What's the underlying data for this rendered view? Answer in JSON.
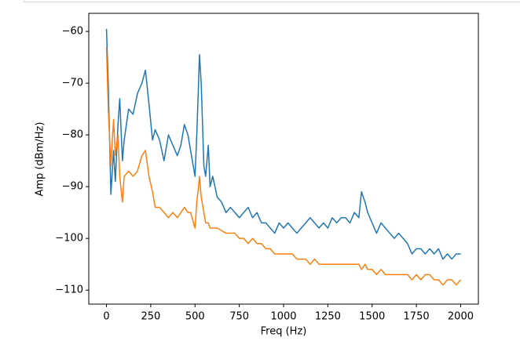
{
  "chart_data": {
    "type": "line",
    "xlabel": "Freq (Hz)",
    "ylabel": "Amp (dBm/Hz)",
    "x": [
      0,
      10,
      25,
      40,
      50,
      65,
      75,
      90,
      100,
      125,
      150,
      175,
      200,
      220,
      240,
      260,
      275,
      300,
      325,
      350,
      375,
      400,
      420,
      440,
      460,
      475,
      500,
      510,
      520,
      525,
      535,
      550,
      560,
      575,
      585,
      600,
      625,
      650,
      675,
      700,
      725,
      750,
      775,
      800,
      825,
      850,
      875,
      900,
      925,
      950,
      975,
      1000,
      1025,
      1050,
      1075,
      1100,
      1125,
      1150,
      1175,
      1200,
      1225,
      1250,
      1275,
      1300,
      1325,
      1350,
      1375,
      1400,
      1425,
      1440,
      1460,
      1475,
      1500,
      1525,
      1550,
      1575,
      1600,
      1625,
      1650,
      1675,
      1700,
      1725,
      1750,
      1775,
      1800,
      1825,
      1850,
      1875,
      1900,
      1925,
      1950,
      1975,
      2000
    ],
    "series": [
      {
        "color": "#1f77b4",
        "values": [
          -59.5,
          -70,
          -91.5,
          -83,
          -89,
          -78,
          -73,
          -85,
          -81,
          -75,
          -76,
          -72,
          -70,
          -67.5,
          -74,
          -81,
          -79,
          -81,
          -85,
          -80,
          -82,
          -84,
          -82,
          -78,
          -80,
          -83,
          -88,
          -80,
          -70,
          -64.5,
          -70,
          -86,
          -88,
          -82,
          -90,
          -88,
          -92,
          -93,
          -95,
          -94,
          -95,
          -96,
          -95,
          -94,
          -96,
          -95,
          -97,
          -97,
          -98,
          -99,
          -97,
          -98,
          -97,
          -98,
          -99,
          -98,
          -97,
          -96,
          -97,
          -98,
          -97,
          -98,
          -96,
          -97,
          -96,
          -96,
          -97,
          -95,
          -96,
          -91,
          -93,
          -95,
          -97,
          -99,
          -97,
          -98,
          -99,
          -100,
          -99,
          -100,
          -101,
          -103,
          -102,
          -102,
          -103,
          -102,
          -103,
          -102,
          -104,
          -103,
          -104,
          -103,
          -103
        ]
      },
      {
        "color": "#ff7f0e",
        "values": [
          -63,
          -75,
          -86,
          -77,
          -84,
          -80,
          -88,
          -93,
          -88,
          -87,
          -88,
          -87,
          -84,
          -83,
          -88,
          -91,
          -94,
          -94,
          -95,
          -96,
          -95,
          -96,
          -95,
          -94,
          -95,
          -95,
          -98,
          -93,
          -90,
          -88,
          -92,
          -95,
          -97,
          -97,
          -98,
          -98,
          -98,
          -98.5,
          -99,
          -99,
          -99,
          -100,
          -100,
          -101,
          -100,
          -101,
          -101,
          -102,
          -102,
          -103,
          -103,
          -103,
          -103,
          -103,
          -104,
          -104,
          -104,
          -105,
          -104,
          -105,
          -105,
          -105,
          -105,
          -105,
          -105,
          -105,
          -105,
          -105,
          -105,
          -106,
          -105,
          -106,
          -106,
          -107,
          -106,
          -107,
          -107,
          -107,
          -107,
          -107,
          -107,
          -108,
          -107,
          -108,
          -107,
          -107,
          -108,
          -108,
          -109,
          -108,
          -108,
          -109,
          -108
        ]
      }
    ],
    "xlim": [
      -100,
      2100
    ],
    "ylim": [
      -112.7,
      -56.5
    ],
    "xticks": [
      0,
      250,
      500,
      750,
      1000,
      1250,
      1500,
      1750,
      2000
    ],
    "yticks": [
      {
        "value": -60,
        "label": "−60"
      },
      {
        "value": -70,
        "label": "−70"
      },
      {
        "value": -80,
        "label": "−80"
      },
      {
        "value": -90,
        "label": "−90"
      },
      {
        "value": -100,
        "label": "−100"
      },
      {
        "value": -110,
        "label": "−110"
      }
    ]
  }
}
